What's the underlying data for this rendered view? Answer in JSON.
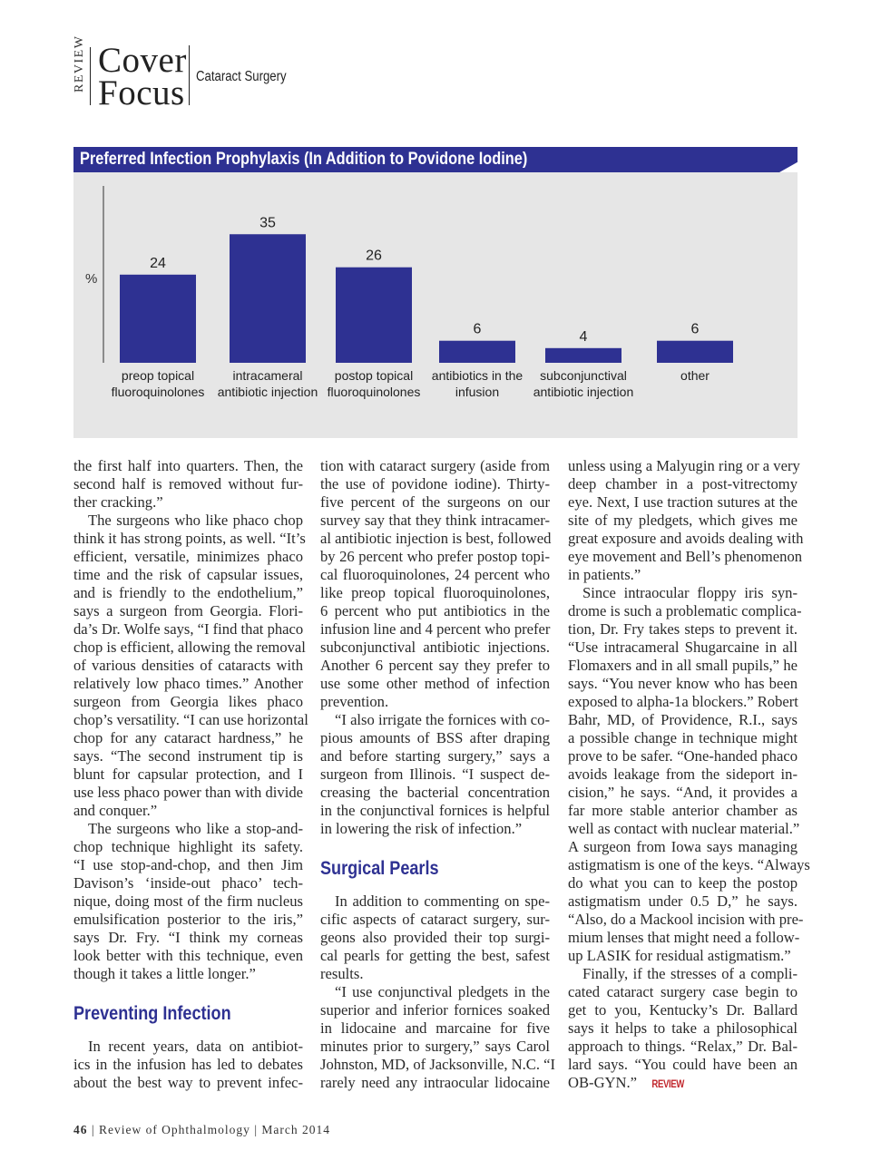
{
  "header": {
    "brand_vertical": "REVIEW",
    "section_line1": "Cover",
    "section_line2": "Focus",
    "topic": "Cataract Surgery"
  },
  "colors": {
    "accent_blue": "#2e3192",
    "panel_gray": "#e6e6e6",
    "review_red": "#c1272d"
  },
  "chart_data": {
    "type": "bar",
    "title": "Preferred Infection Prophylaxis (In Addition to Povidone Iodine)",
    "ylabel": "%",
    "xlabel": "",
    "categories": [
      [
        "preop topical",
        "fluoroquinolones"
      ],
      [
        "intracameral",
        "antibiotic injection"
      ],
      [
        "postop topical",
        "fluoroquinolones"
      ],
      [
        "antibiotics in the",
        "infusion"
      ],
      [
        "subconjunctival",
        "antibiotic injection"
      ],
      [
        "other"
      ]
    ],
    "values": [
      24,
      35,
      26,
      6,
      4,
      6
    ],
    "ylim": [
      0,
      40
    ],
    "grid": false,
    "bar_color": "#2e3192"
  },
  "columns": [
    [
      {
        "type": "p",
        "indent": false,
        "lines": [
          "the first half into quarters. Then, the",
          "second half is removed without fur-",
          "ther cracking.”"
        ]
      },
      {
        "type": "p",
        "indent": true,
        "lines": [
          "The surgeons who like phaco chop",
          "think it has strong points, as well. “It’s",
          "efficient, versatile, minimizes phaco",
          "time and the risk of capsular issues,",
          "and is friendly to the endothelium,”",
          "says a surgeon from Georgia. Flori-",
          "da’s Dr. Wolfe says, “I find that phaco",
          "chop is efficient, allowing the removal",
          "of various densities of cataracts with",
          "relatively low phaco times.” Another",
          "surgeon from Georgia likes phaco",
          "chop’s versatility. “I can use horizontal",
          "chop for any cataract hardness,” he",
          "says. “The second instrument tip is",
          "blunt for capsular protection, and I",
          "use less phaco power than with divide",
          "and conquer.”"
        ]
      },
      {
        "type": "p",
        "indent": true,
        "lines": [
          "The surgeons who like a stop-and-",
          "chop technique highlight its safety.",
          "“I use stop-and-chop, and then Jim",
          "Davison’s ‘inside-out phaco’ tech-",
          "nique, doing most of the firm nucleus",
          "emulsification posterior to the iris,”",
          "says Dr. Fry. “I think my corneas",
          "look better with this technique, even",
          "though it takes a little longer.”"
        ]
      },
      {
        "type": "h",
        "text": "Preventing Infection"
      },
      {
        "type": "p",
        "indent": true,
        "open": true,
        "lines": [
          "In recent years, data on antibiot-",
          "ics in the infusion has led to debates",
          "about the best way to prevent infec-"
        ]
      }
    ],
    [
      {
        "type": "p",
        "indent": false,
        "lines": [
          "tion with cataract surgery (aside from",
          "the use of povidone iodine). Thirty-",
          "five percent of the surgeons on our",
          "survey say that they think intracamer-",
          "al antibiotic injection is best, followed",
          "by 26 percent who prefer postop topi-",
          "cal fluoroquinolones, 24 percent who",
          "like preop topical fluoroquinolones,",
          "6 percent who put antibiotics in the",
          "infusion line and 4 percent who prefer",
          "subconjunctival antibiotic injections.",
          "Another 6 percent say they prefer to",
          "use some other method of infection",
          "prevention."
        ]
      },
      {
        "type": "p",
        "indent": true,
        "lines": [
          "“I also irrigate the fornices with co-",
          "pious amounts of BSS after draping",
          "and before starting surgery,” says a",
          "surgeon from Illinois. “I suspect de-",
          "creasing the bacterial concentration",
          "in the conjunctival fornices is helpful",
          "in lowering the risk of infection.”"
        ]
      },
      {
        "type": "h",
        "text": "Surgical Pearls"
      },
      {
        "type": "p",
        "indent": true,
        "lines": [
          "In addition to commenting on spe-",
          "cific aspects of cataract surgery, sur-",
          "geons also provided their top surgi-",
          "cal pearls for getting the best, safest",
          "results."
        ]
      },
      {
        "type": "p",
        "indent": true,
        "open": true,
        "lines": [
          "“I use conjunctival pledgets in the",
          "superior and inferior fornices soaked",
          "in lidocaine and marcaine for five",
          "minutes prior to surgery,” says Carol",
          "Johnston, MD, of Jacksonville, N.C. “I",
          "rarely need any intraocular lidocaine"
        ]
      }
    ],
    [
      {
        "type": "p",
        "indent": false,
        "lines": [
          "unless using a Malyugin ring or a very",
          "deep chamber in a post-vitrectomy",
          "eye. Next, I use traction sutures at the",
          "site of my pledgets, which gives me",
          "great exposure and avoids dealing with",
          "eye movement and Bell’s phenomenon",
          "in patients.”"
        ]
      },
      {
        "type": "p",
        "indent": true,
        "lines": [
          "Since intraocular floppy iris syn-",
          "drome is such a problematic complica-",
          "tion, Dr. Fry takes steps to prevent it.",
          "“Use intracameral Shugarcaine in all",
          "Flomaxers and in all small pupils,” he",
          "says. “You never know who has been",
          "exposed to alpha-1a blockers.” Robert",
          "Bahr, MD, of Providence, R.I., says",
          "a possible change in technique might",
          "prove to be safer. “One-handed phaco",
          "avoids leakage from the sideport in-",
          "cision,” he says. “And, it provides a",
          "far more stable anterior chamber as",
          "well as contact with nuclear material.”",
          "A surgeon from Iowa says managing",
          "astigmatism is one of the keys. “Always",
          "do what you can to keep the postop",
          "astigmatism under 0.5 D,” he says.",
          "“Also, do a Mackool incision with pre-",
          "mium lenses that might need a follow-",
          "up LASIK for residual astigmatism.”"
        ]
      },
      {
        "type": "p",
        "indent": true,
        "endmark": "REVIEW",
        "lines": [
          "Finally, if the stresses of a compli-",
          "cated cataract surgery case begin to",
          "get to you, Kentucky’s Dr. Ballard",
          "says it helps to take a philosophical",
          "approach to things. “Relax,” Dr. Bal-",
          "lard says. “You could have been an",
          "OB-GYN.”"
        ]
      }
    ]
  ],
  "footer": {
    "page_number": "46",
    "publication": "Review of Ophthalmology",
    "issue": "March 2014",
    "separator": "|"
  }
}
